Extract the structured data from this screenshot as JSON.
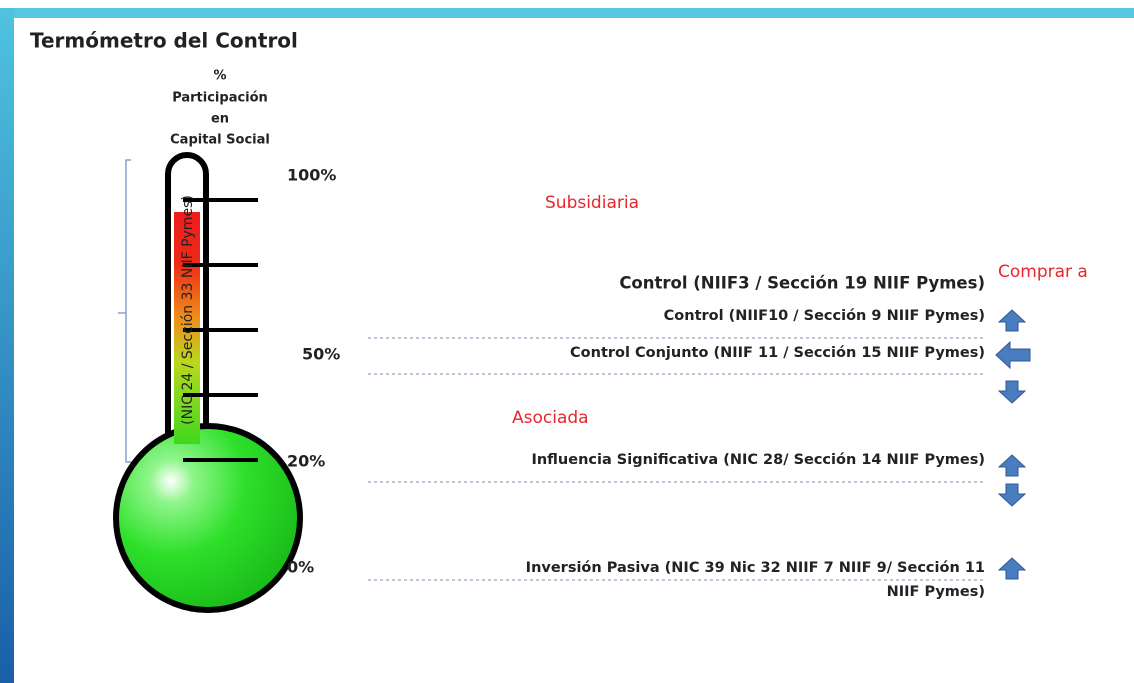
{
  "header": {
    "title": "Termómetro del Control"
  },
  "scale_label": [
    "%",
    "Participación",
    "en",
    "Capital Social"
  ],
  "scale": [
    "100%",
    "50%",
    "20%",
    "0%"
  ],
  "vertical_note": "(NIC 24 / Sección 33 NIIF Pymes)",
  "groups": {
    "subsidiaria": "Subsidiaria",
    "comprar": "Comprar a",
    "asociada": "Asociada"
  },
  "levels": [
    "Control (NIIF3 / Sección 19 NIIF Pymes)",
    "Control (NIIF10 / Sección 9 NIIF Pymes)",
    "Control Conjunto (NIIF 11 / Sección 15 NIIF Pymes)",
    "Influencia Significativa (NIC 28/ Sección 14 NIIF Pymes)",
    "Inversión Pasiva (NIC 39 Nic 32 NIIF 7 NIIF 9/ Sección 11",
    "NIIF Pymes)"
  ]
}
